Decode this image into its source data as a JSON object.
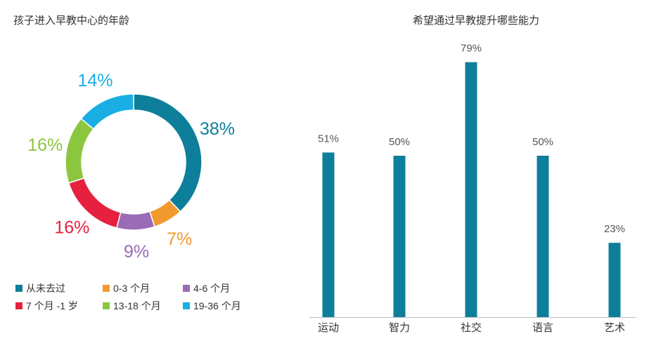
{
  "chart_data": [
    {
      "type": "pie",
      "title": "孩子进入早教中心的年龄",
      "series": [
        {
          "name": "从未去过",
          "value": 38,
          "label": "38%",
          "color": "#0e7f9a"
        },
        {
          "name": "0-3 个月",
          "value": 7,
          "label": "7%",
          "color": "#f29a2e"
        },
        {
          "name": "4-6 个月",
          "value": 9,
          "label": "9%",
          "color": "#9b6bb5"
        },
        {
          "name": "7 个月 -1 岁",
          "value": 16,
          "label": "16%",
          "color": "#e5213f"
        },
        {
          "name": "13-18 个月",
          "value": 16,
          "label": "16%",
          "color": "#8cc63f"
        },
        {
          "name": "19-36 个月",
          "value": 14,
          "label": "14%",
          "color": "#1aaee5"
        }
      ],
      "legend_position": "bottom"
    },
    {
      "type": "bar",
      "title": "希望通过早教提升哪些能力",
      "categories": [
        "运动",
        "智力",
        "社交",
        "语言",
        "艺术"
      ],
      "values": [
        51,
        50,
        79,
        50,
        23
      ],
      "value_labels": [
        "51%",
        "50%",
        "79%",
        "50%",
        "23%"
      ],
      "ylim": [
        0,
        100
      ],
      "grid": false,
      "bar_color": "#0e7f9a"
    }
  ]
}
